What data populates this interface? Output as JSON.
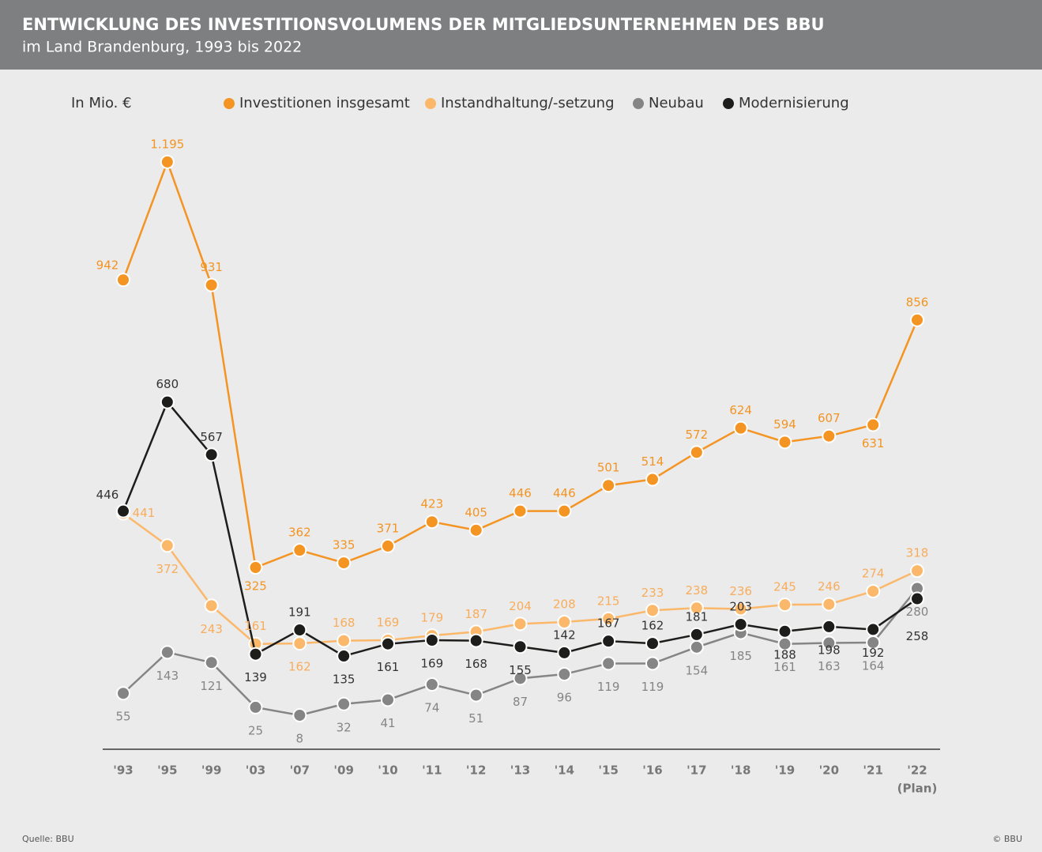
{
  "chart_data": {
    "type": "line",
    "title": "ENTWICKLUNG DES INVESTITIONSVOLUMENS DER MITGLIEDSUNTERNEHMEN DES BBU",
    "subtitle": "im Land Brandenburg, 1993 bis 2022",
    "unit_label": "In Mio. €",
    "categories": [
      "'93",
      "'95",
      "'99",
      "'03",
      "'07",
      "'09",
      "'10",
      "'11",
      "'12",
      "'13",
      "'14",
      "'15",
      "'16",
      "'17",
      "'18",
      "'19",
      "'20",
      "'21",
      "'22"
    ],
    "category_note": "(Plan)",
    "source": "Quelle: BBU",
    "copyright": "© BBU",
    "ylim": [
      -65,
      1300
    ],
    "series": [
      {
        "name": "Investitionen insgesamt",
        "color": "#f39423",
        "values": [
          942,
          1195,
          931,
          325,
          362,
          335,
          371,
          423,
          405,
          446,
          446,
          501,
          514,
          572,
          624,
          594,
          607,
          631,
          856
        ],
        "value_labels": [
          "942",
          "1.195",
          "931",
          "325",
          "362",
          "335",
          "371",
          "423",
          "405",
          "446",
          "446",
          "501",
          "514",
          "572",
          "624",
          "594",
          "607",
          "631",
          "856"
        ]
      },
      {
        "name": "Instandhaltung/-setzung",
        "color": "#fbb86b",
        "values": [
          441,
          372,
          243,
          161,
          162,
          168,
          169,
          179,
          187,
          204,
          208,
          215,
          233,
          238,
          236,
          245,
          246,
          274,
          318
        ]
      },
      {
        "name": "Neubau",
        "color": "#858585",
        "values": [
          55,
          143,
          121,
          25,
          8,
          32,
          41,
          74,
          51,
          87,
          96,
          119,
          119,
          154,
          185,
          161,
          163,
          164,
          280
        ]
      },
      {
        "name": "Modernisierung",
        "color": "#1d1d1b",
        "values": [
          446,
          680,
          567,
          139,
          191,
          135,
          161,
          169,
          168,
          155,
          142,
          167,
          162,
          181,
          203,
          188,
          198,
          192,
          258
        ]
      }
    ]
  }
}
